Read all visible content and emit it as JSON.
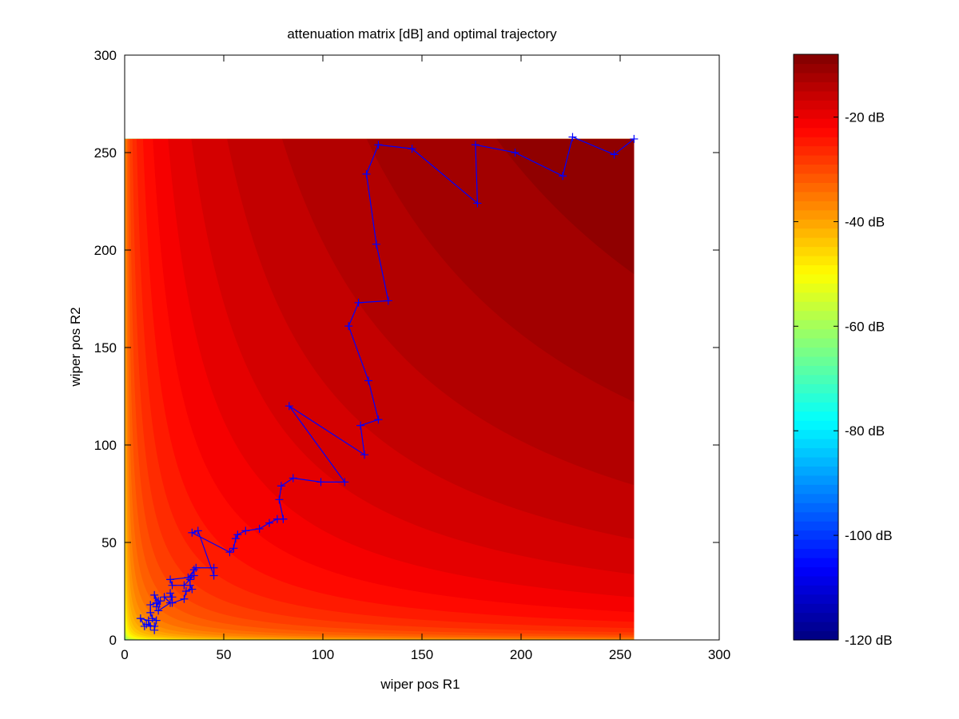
{
  "chart_data": {
    "type": "heatmap",
    "title": "attenuation matrix [dB] and optimal trajectory",
    "xlabel": "wiper pos R1",
    "ylabel": "wiper pos R2",
    "xlim": [
      0,
      300
    ],
    "ylim": [
      0,
      300
    ],
    "xticks": [
      "0",
      "50",
      "100",
      "150",
      "200",
      "250",
      "300"
    ],
    "yticks": [
      "0",
      "50",
      "100",
      "150",
      "200",
      "250",
      "300"
    ],
    "xtick_values": [
      0,
      50,
      100,
      150,
      200,
      250,
      300
    ],
    "ytick_values": [
      0,
      50,
      100,
      150,
      200,
      250,
      300
    ],
    "heatmap": {
      "x_range": [
        0,
        257
      ],
      "y_range": [
        0,
        257
      ],
      "colormap": "jet",
      "clim": [
        -120,
        -8
      ]
    },
    "colorbar": {
      "ticks": [
        "-120 dB",
        "-100 dB",
        "-80 dB",
        "-60 dB",
        "-40 dB",
        "-20 dB"
      ],
      "tick_values": [
        -120,
        -100,
        -80,
        -60,
        -40,
        -20
      ]
    },
    "trajectory": {
      "color": "#0000ff",
      "marker": "+",
      "points": [
        [
          10,
          7
        ],
        [
          8,
          11
        ],
        [
          12,
          10
        ],
        [
          13,
          7
        ],
        [
          11,
          8
        ],
        [
          15,
          7
        ],
        [
          15,
          5
        ],
        [
          16,
          10
        ],
        [
          14,
          11
        ],
        [
          13,
          14
        ],
        [
          13,
          18
        ],
        [
          16,
          19
        ],
        [
          15,
          23
        ],
        [
          17,
          20
        ],
        [
          16,
          17
        ],
        [
          18,
          20
        ],
        [
          17,
          15
        ],
        [
          23,
          19
        ],
        [
          20,
          22
        ],
        [
          24,
          22
        ],
        [
          23,
          24
        ],
        [
          24,
          19
        ],
        [
          30,
          21
        ],
        [
          31,
          25
        ],
        [
          34,
          26
        ],
        [
          33,
          28
        ],
        [
          33,
          31
        ],
        [
          35,
          36
        ],
        [
          35,
          33
        ],
        [
          30,
          28
        ],
        [
          24,
          28
        ],
        [
          23,
          31
        ],
        [
          32,
          32
        ],
        [
          36,
          37
        ],
        [
          45,
          37
        ],
        [
          45,
          33
        ],
        [
          37,
          56
        ],
        [
          34,
          55
        ],
        [
          53,
          45
        ],
        [
          55,
          47
        ],
        [
          56,
          52
        ],
        [
          57,
          54
        ],
        [
          61,
          56
        ],
        [
          68,
          57
        ],
        [
          73,
          60
        ],
        [
          77,
          62
        ],
        [
          80,
          62
        ],
        [
          78,
          72
        ],
        [
          79,
          79
        ],
        [
          85,
          83
        ],
        [
          99,
          81
        ],
        [
          111,
          81
        ],
        [
          83,
          120
        ],
        [
          121,
          95
        ],
        [
          119,
          110
        ],
        [
          128,
          113
        ],
        [
          123,
          133
        ],
        [
          113,
          161
        ],
        [
          118,
          173
        ],
        [
          133,
          174
        ],
        [
          127,
          203
        ],
        [
          122,
          239
        ],
        [
          128,
          254
        ],
        [
          145,
          252
        ],
        [
          178,
          224
        ],
        [
          177,
          254
        ],
        [
          197,
          250
        ],
        [
          221,
          238
        ],
        [
          226,
          258
        ],
        [
          247,
          249
        ],
        [
          257,
          257
        ]
      ]
    }
  }
}
